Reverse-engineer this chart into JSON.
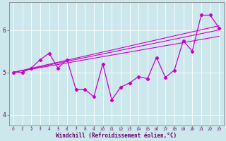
{
  "xlabel": "Windchill (Refroidissement éolien,°C)",
  "bg_color": "#cce8ec",
  "line_color": "#cc00cc",
  "grid_color": "#ffffff",
  "spine_color": "#888888",
  "tick_color": "#660066",
  "label_color": "#660066",
  "x_data": [
    0,
    1,
    2,
    3,
    4,
    5,
    6,
    7,
    8,
    9,
    10,
    11,
    12,
    13,
    14,
    15,
    16,
    17,
    18,
    19,
    20,
    21,
    22,
    23
  ],
  "y_data": [
    5.0,
    5.0,
    5.1,
    5.3,
    5.45,
    5.1,
    5.3,
    4.6,
    4.6,
    4.42,
    5.2,
    4.35,
    4.65,
    4.75,
    4.9,
    4.85,
    5.35,
    4.88,
    5.05,
    5.75,
    5.5,
    6.35,
    6.35,
    6.05
  ],
  "ref_lines": [
    {
      "x": [
        0,
        23
      ],
      "y": [
        5.0,
        5.85
      ]
    },
    {
      "x": [
        0,
        23
      ],
      "y": [
        5.0,
        6.0
      ]
    },
    {
      "x": [
        0,
        23
      ],
      "y": [
        5.0,
        6.1
      ]
    }
  ],
  "xlim": [
    -0.5,
    23.5
  ],
  "ylim": [
    3.75,
    6.65
  ],
  "yticks": [
    4,
    5,
    6
  ],
  "xticks": [
    0,
    1,
    2,
    3,
    4,
    5,
    6,
    7,
    8,
    9,
    10,
    11,
    12,
    13,
    14,
    15,
    16,
    17,
    18,
    19,
    20,
    21,
    22,
    23
  ],
  "xlabel_fontsize": 5.5,
  "tick_fontsize_x": 4.2,
  "tick_fontsize_y": 5.5,
  "linewidth": 0.9,
  "marker_size": 2.2
}
